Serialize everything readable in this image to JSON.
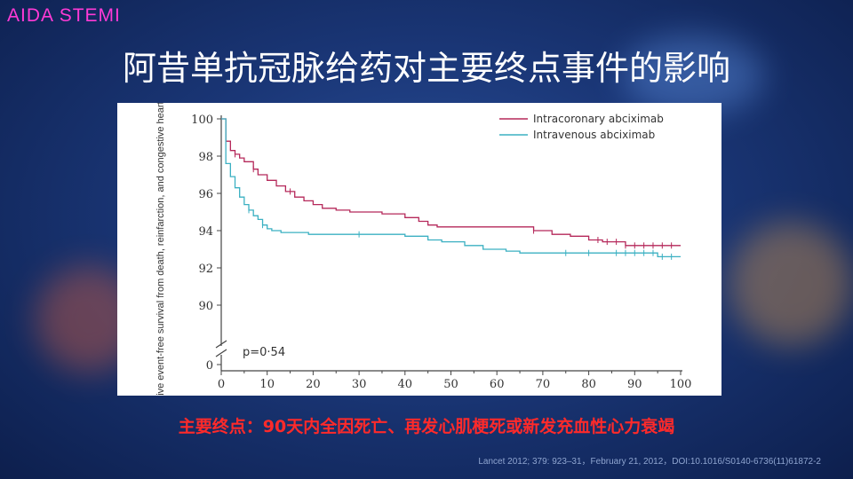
{
  "header": {
    "tag": "AIDA STEMI"
  },
  "slide": {
    "title": "阿昔单抗冠脉给药对主要终点事件的影响",
    "footnote": "主要终点：90天内全因死亡、再发心肌梗死或新发充血性心力衰竭",
    "citation": "Lancet 2012; 379: 923–31，February 21, 2012，DOI:10.1016/S0140-6736(11)61872-2"
  },
  "colors": {
    "intracoronary": "#b5285a",
    "intravenous": "#3bb0c2",
    "header_tag": "#ff3ad6",
    "footnote": "#ff2a2a"
  },
  "chart_data": {
    "type": "line",
    "ylabel": "Cumulative event-free survival from death, reinfarction, and congestive heart failure (%)",
    "xlim": [
      0,
      100
    ],
    "ylim": [
      88,
      100
    ],
    "xticks": [
      "0",
      "10",
      "20",
      "30",
      "40",
      "50",
      "60",
      "70",
      "80",
      "90",
      "100"
    ],
    "yticks": [
      "90",
      "92",
      "94",
      "96",
      "98",
      "100"
    ],
    "y_zero_tick": "0",
    "annotation": "p=0·54",
    "legend_placement": "top-right",
    "series": [
      {
        "name": "Intracoronary abciximab",
        "x": [
          0,
          1,
          2,
          3,
          4,
          5,
          7,
          8,
          10,
          12,
          14,
          16,
          18,
          20,
          22,
          25,
          28,
          35,
          40,
          43,
          45,
          47,
          60,
          68,
          72,
          76,
          80,
          83,
          87,
          88,
          100
        ],
        "y": [
          100,
          98.8,
          98.3,
          98.1,
          97.9,
          97.7,
          97.3,
          97.0,
          96.7,
          96.4,
          96.1,
          95.8,
          95.6,
          95.4,
          95.2,
          95.1,
          95.0,
          94.9,
          94.7,
          94.5,
          94.3,
          94.2,
          94.2,
          94.0,
          93.8,
          93.7,
          93.5,
          93.4,
          93.4,
          93.2,
          93.2
        ]
      },
      {
        "name": "Intravenous abciximab",
        "x": [
          0,
          1,
          2,
          3,
          4,
          5,
          6,
          7,
          8,
          9,
          10,
          11,
          13,
          19,
          25,
          40,
          45,
          48,
          53,
          57,
          62,
          65,
          90,
          95,
          100
        ],
        "y": [
          100,
          97.6,
          96.9,
          96.3,
          95.8,
          95.4,
          95.1,
          94.8,
          94.6,
          94.3,
          94.1,
          94.0,
          93.9,
          93.8,
          93.8,
          93.7,
          93.5,
          93.4,
          93.2,
          93.0,
          92.9,
          92.8,
          92.8,
          92.6,
          92.6
        ]
      }
    ],
    "censor_marks": {
      "Intracoronary abciximab": [
        3,
        7,
        15,
        68,
        82,
        84,
        86,
        88,
        90,
        92,
        94,
        96,
        98
      ],
      "Intravenous abciximab": [
        6,
        9,
        30,
        75,
        80,
        86,
        88,
        90,
        92,
        94,
        96,
        98
      ]
    }
  }
}
